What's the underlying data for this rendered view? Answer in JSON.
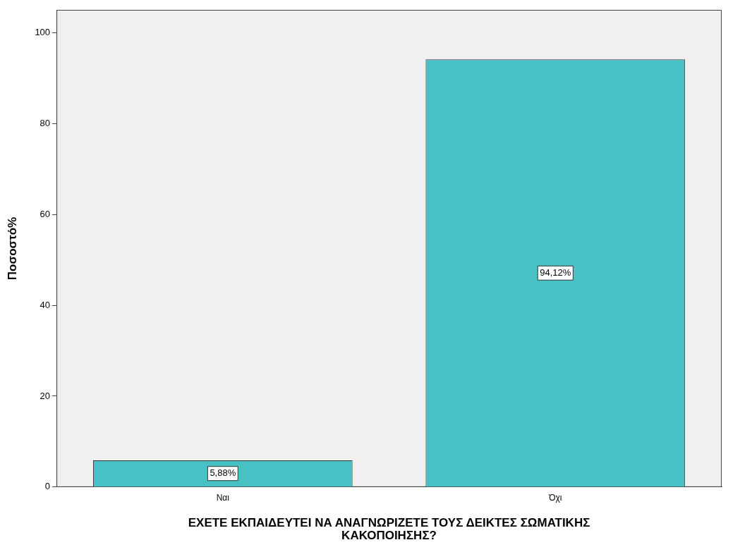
{
  "chart_data": {
    "type": "bar",
    "xlabel": "ΕΧΕΤΕ ΕΚΠΑΙΔΕΥΤΕΙ ΝΑ ΑΝΑΓΝΩΡΙΖΕΤΕ ΤΟΥΣ ΔΕΙΚΤΕΣ ΣΩΜΑΤΙΚΗΣ ΚΑΚΟΠΟΙΗΣΗΣ?",
    "ylabel": "Ποσοστό%",
    "categories": [
      "Ναι",
      "Όχι"
    ],
    "values": [
      5.88,
      94.12
    ],
    "value_labels": [
      "5,88%",
      "94,12%"
    ],
    "color": "#48c1c4",
    "ylim": [
      0,
      105
    ],
    "yticks": [
      0,
      20,
      40,
      60,
      80,
      100
    ],
    "grid": false,
    "legend": false
  }
}
